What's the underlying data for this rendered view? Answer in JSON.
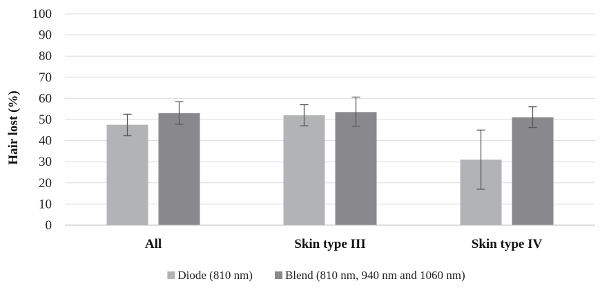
{
  "chart_data": {
    "type": "bar",
    "title": "",
    "xlabel": "",
    "ylabel": "Hair lost (%)",
    "ylim": [
      0,
      100
    ],
    "yticks": [
      0,
      10,
      20,
      30,
      40,
      50,
      60,
      70,
      80,
      90,
      100
    ],
    "grid": true,
    "legend_position": "bottom",
    "categories": [
      "All",
      "Skin type III",
      "Skin type IV"
    ],
    "series": [
      {
        "name": "Diode (810 nm)",
        "color": "#b2b3b6",
        "values": [
          47.5,
          52,
          31
        ],
        "error_low": [
          42.3,
          47,
          17
        ],
        "error_high": [
          52.5,
          57,
          45
        ]
      },
      {
        "name": "Blend (810 nm, 940 nm and 1060 nm)",
        "color": "#89898d",
        "values": [
          53,
          53.5,
          51
        ],
        "error_low": [
          47.7,
          46.8,
          46.2
        ],
        "error_high": [
          58.4,
          60.6,
          56
        ]
      }
    ]
  }
}
